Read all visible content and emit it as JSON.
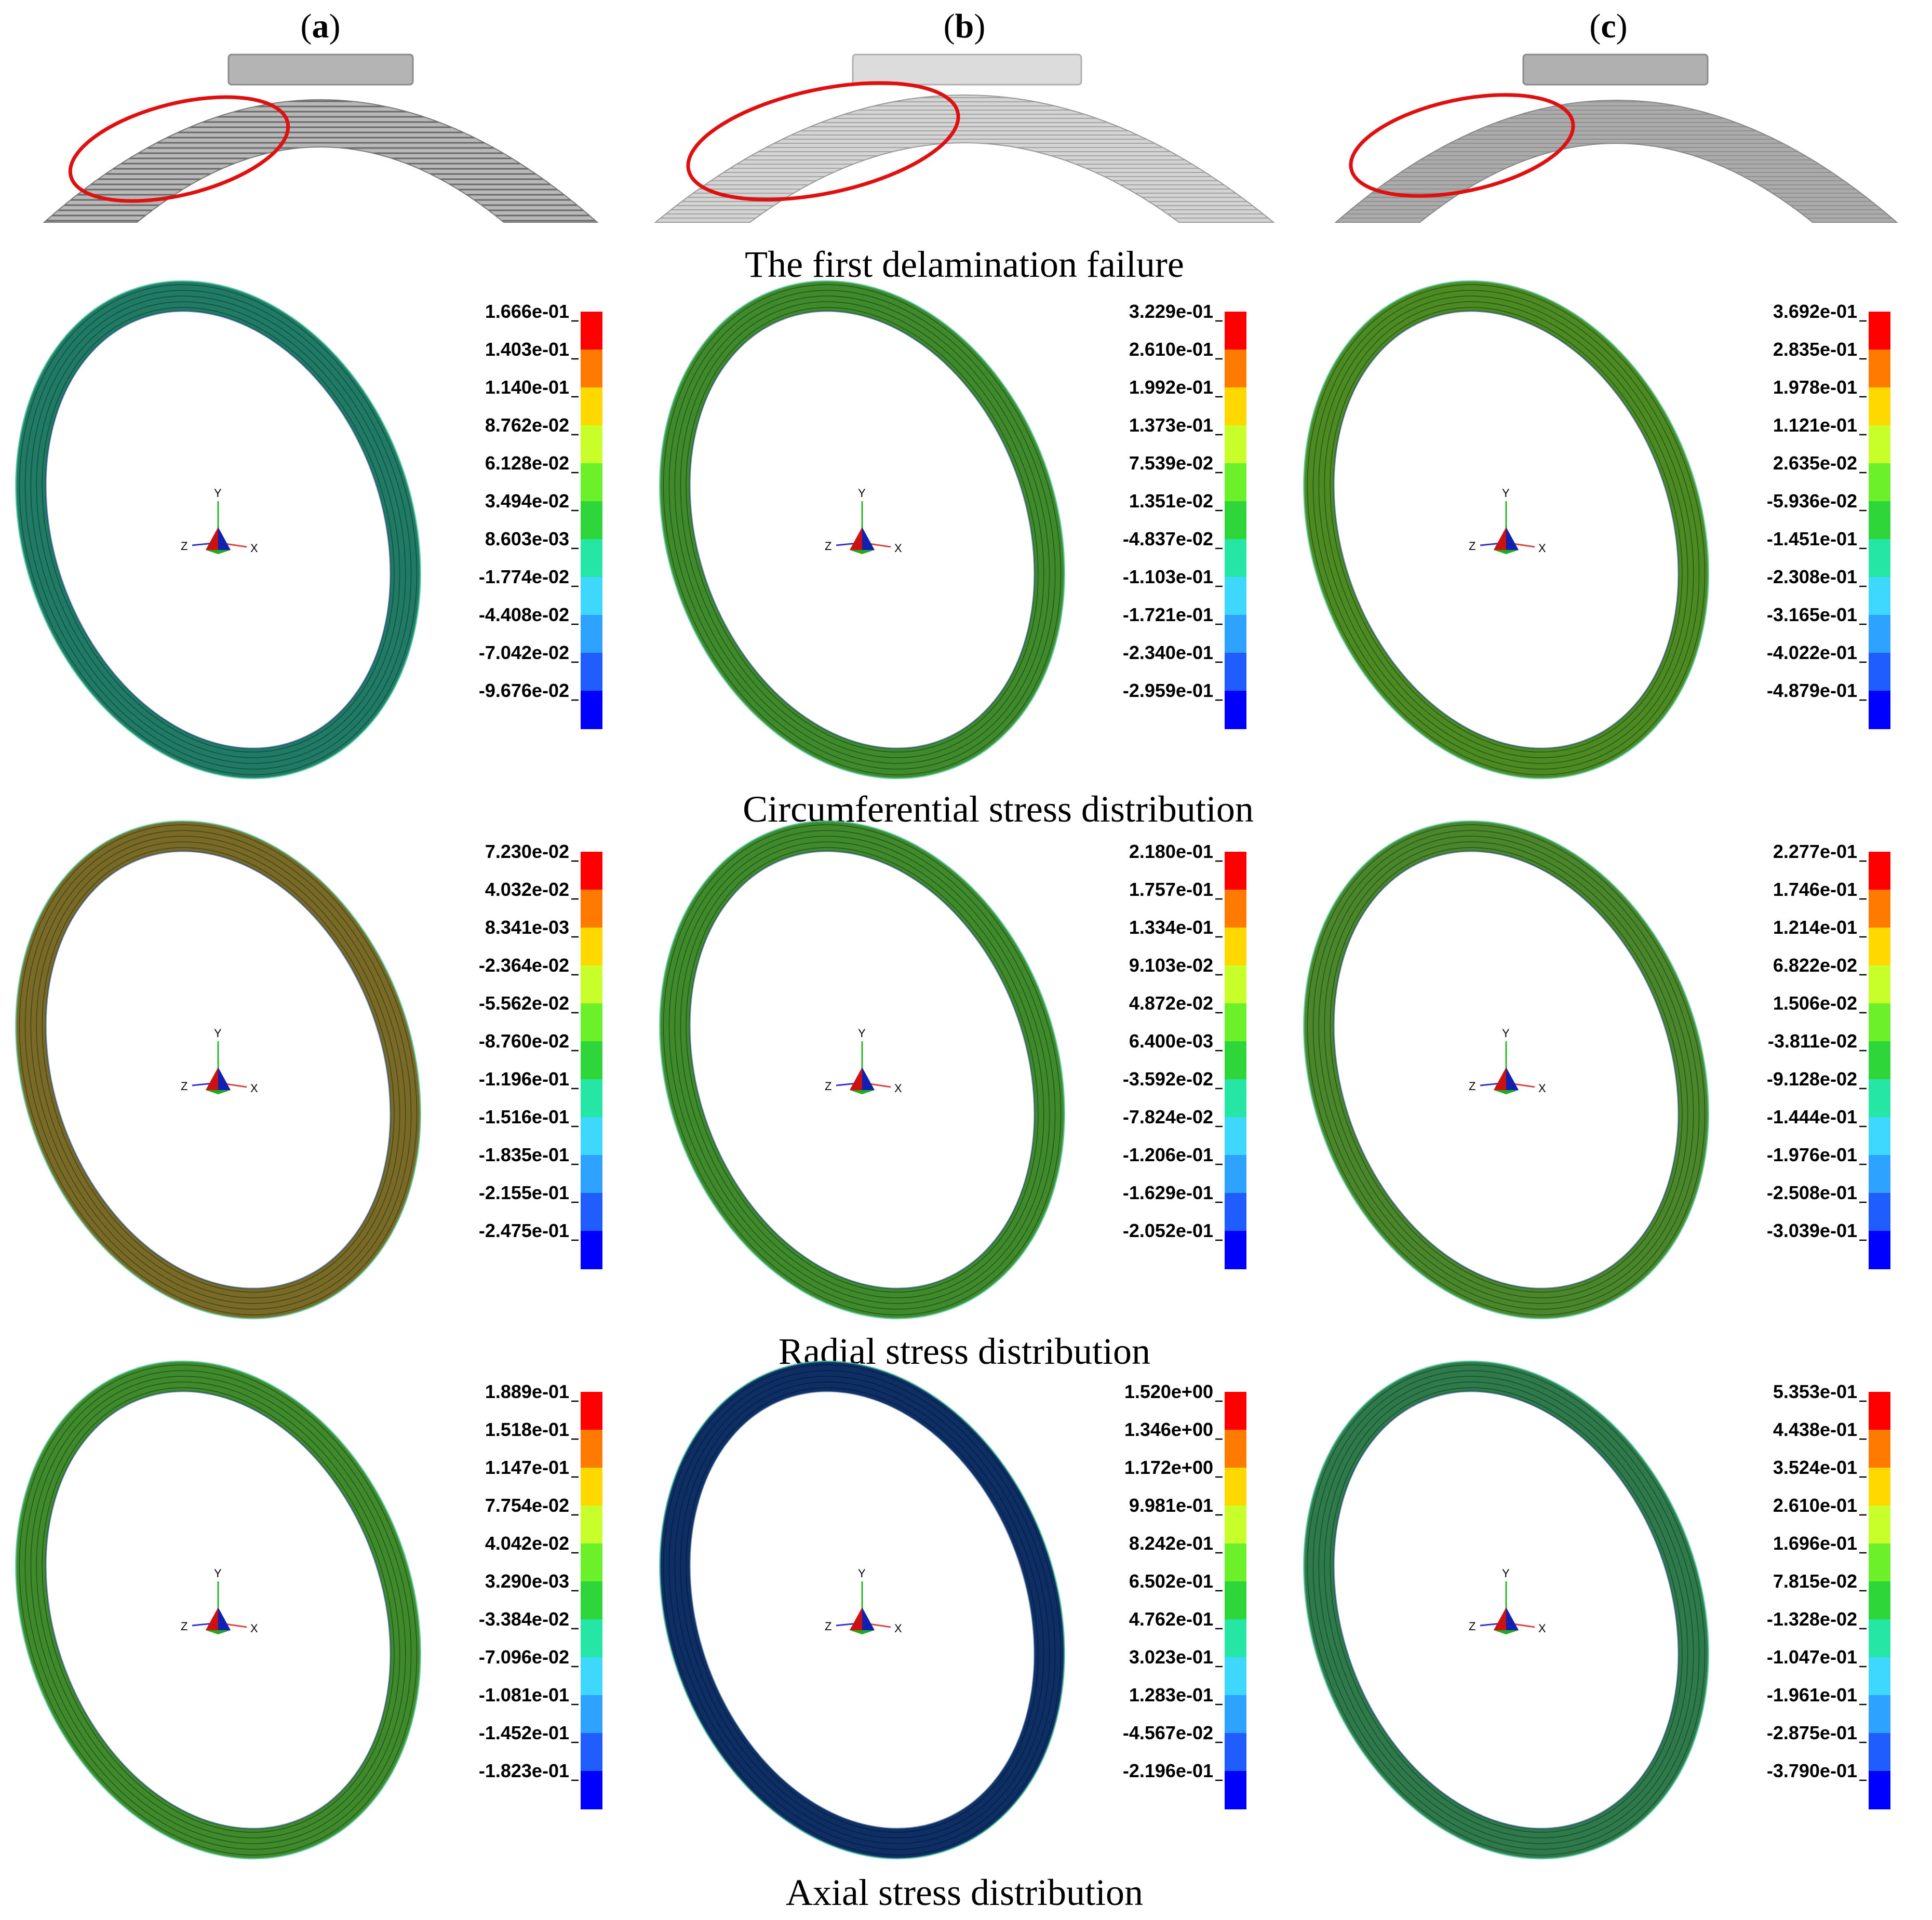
{
  "columns": [
    "a",
    "b",
    "c"
  ],
  "row_captions": [
    "The first delamination failure",
    "Circumferential stress distribution",
    "Radial stress distribution",
    "Axial stress distribution"
  ],
  "axis_labels": {
    "x": "X",
    "y": "Y",
    "z": "Z"
  },
  "legend_colors": [
    "#ff0000",
    "#ff7a00",
    "#ffd800",
    "#c8ff2a",
    "#6cf02a",
    "#2fd63a",
    "#26e6a6",
    "#3ed8ff",
    "#2ea2ff",
    "#1f5dff",
    "#0000ff"
  ],
  "ring_colors": {
    "circ": [
      "#1f7a66",
      "#3f8a2a",
      "#4c8a22"
    ],
    "radial": [
      "#7a6a26",
      "#3f8a2a",
      "#4a862a"
    ],
    "axial": [
      "#3f8a2a",
      "#0e2f63",
      "#2e7a4a"
    ]
  },
  "scales": {
    "circ": [
      [
        "1.666e-01",
        "1.403e-01",
        "1.140e-01",
        "8.762e-02",
        "6.128e-02",
        "3.494e-02",
        "8.603e-03",
        "-1.774e-02",
        "-4.408e-02",
        "-7.042e-02",
        "-9.676e-02"
      ],
      [
        "3.229e-01",
        "2.610e-01",
        "1.992e-01",
        "1.373e-01",
        "7.539e-02",
        "1.351e-02",
        "-4.837e-02",
        "-1.103e-01",
        "-1.721e-01",
        "-2.340e-01",
        "-2.959e-01"
      ],
      [
        "3.692e-01",
        "2.835e-01",
        "1.978e-01",
        "1.121e-01",
        "2.635e-02",
        "-5.936e-02",
        "-1.451e-01",
        "-2.308e-01",
        "-3.165e-01",
        "-4.022e-01",
        "-4.879e-01"
      ]
    ],
    "radial": [
      [
        "7.230e-02",
        "4.032e-02",
        "8.341e-03",
        "-2.364e-02",
        "-5.562e-02",
        "-8.760e-02",
        "-1.196e-01",
        "-1.516e-01",
        "-1.835e-01",
        "-2.155e-01",
        "-2.475e-01"
      ],
      [
        "2.180e-01",
        "1.757e-01",
        "1.334e-01",
        "9.103e-02",
        "4.872e-02",
        "6.400e-03",
        "-3.592e-02",
        "-7.824e-02",
        "-1.206e-01",
        "-1.629e-01",
        "-2.052e-01"
      ],
      [
        "2.277e-01",
        "1.746e-01",
        "1.214e-01",
        "6.822e-02",
        "1.506e-02",
        "-3.811e-02",
        "-9.128e-02",
        "-1.444e-01",
        "-1.976e-01",
        "-2.508e-01",
        "-3.039e-01"
      ]
    ],
    "axial": [
      [
        "1.889e-01",
        "1.518e-01",
        "1.147e-01",
        "7.754e-02",
        "4.042e-02",
        "3.290e-03",
        "-3.384e-02",
        "-7.096e-02",
        "-1.081e-01",
        "-1.452e-01",
        "-1.823e-01"
      ],
      [
        "1.520e+00",
        "1.346e+00",
        "1.172e+00",
        "9.981e-01",
        "8.242e-01",
        "6.502e-01",
        "4.762e-01",
        "3.023e-01",
        "1.283e-01",
        "-4.567e-02",
        "-2.196e-01"
      ],
      [
        "5.353e-01",
        "4.438e-01",
        "3.524e-01",
        "2.610e-01",
        "1.696e-01",
        "7.815e-02",
        "-1.328e-02",
        "-1.047e-01",
        "-1.961e-01",
        "-2.875e-01",
        "-3.790e-01"
      ]
    ]
  }
}
